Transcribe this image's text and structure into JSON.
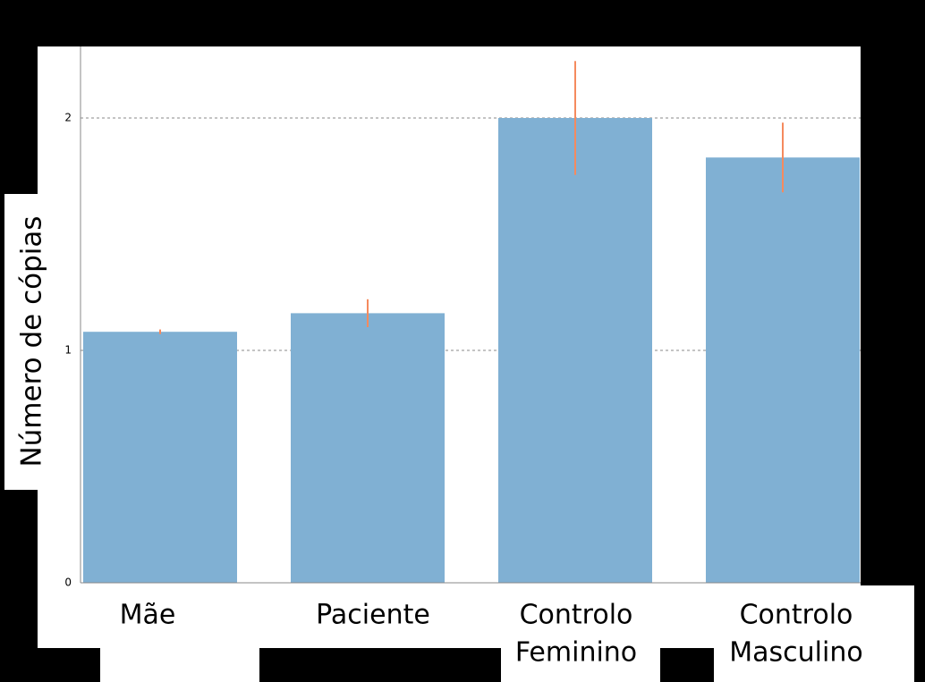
{
  "chart_data": {
    "type": "bar",
    "y_label": "Número de cópias",
    "categories": [
      [
        "Mãe"
      ],
      [
        "Paciente"
      ],
      [
        "Controlo",
        "Feminino"
      ],
      [
        "Controlo",
        "Masculino"
      ]
    ],
    "values": [
      1.08,
      1.16,
      2.0,
      1.83
    ],
    "errors": [
      0.01,
      0.06,
      0.245,
      0.15
    ],
    "color": "#80b0d3",
    "error_color": "#f58a5e",
    "ylim": [
      0,
      2.3
    ],
    "yticks": [
      0,
      1,
      2
    ],
    "grid": true
  }
}
